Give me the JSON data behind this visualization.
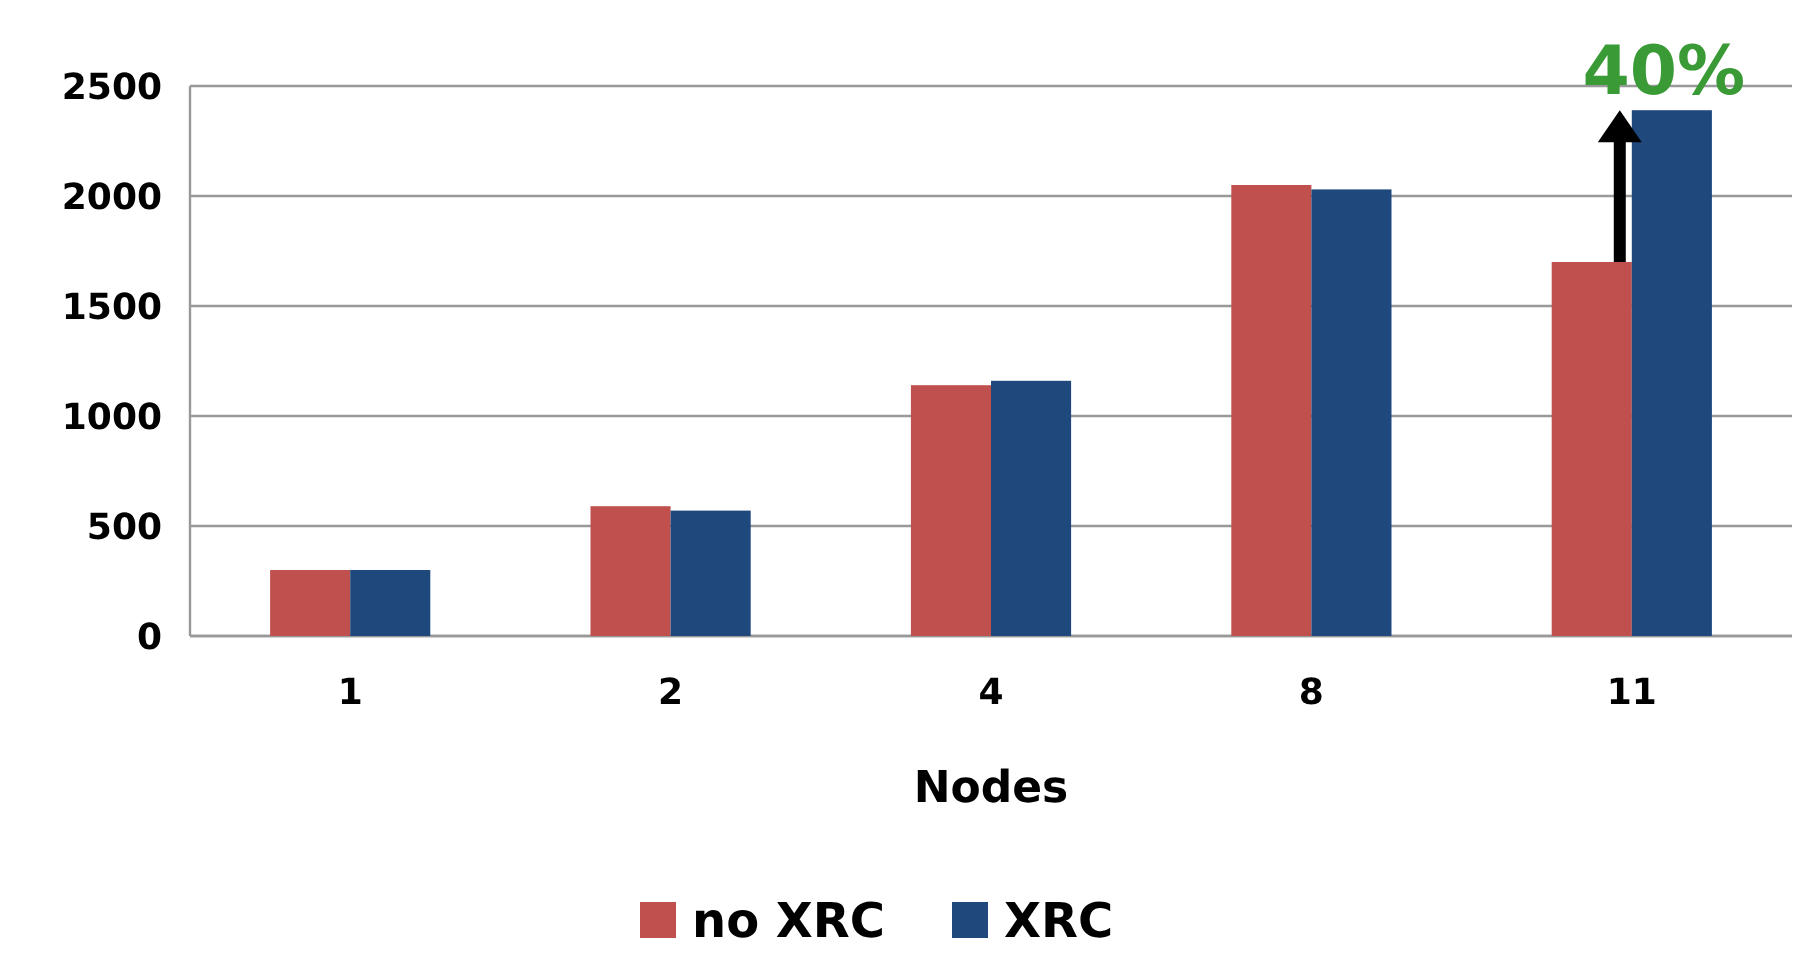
{
  "chart_data": {
    "type": "bar",
    "xlabel": "Nodes",
    "categories": [
      "1",
      "2",
      "4",
      "8",
      "11"
    ],
    "series": [
      {
        "name": "no XRC",
        "color": "#c0504d",
        "values": [
          300,
          590,
          1140,
          2050,
          1700
        ]
      },
      {
        "name": "XRC",
        "color": "#1f497d",
        "values": [
          300,
          570,
          1160,
          2030,
          2390
        ]
      }
    ],
    "ylim": [
      0,
      2500
    ],
    "yticks": [
      0,
      500,
      1000,
      1500,
      2000,
      2500
    ],
    "grid": "y",
    "legend": "bottom",
    "annotations": [
      {
        "text": "40%",
        "x": "11",
        "y": 2390
      }
    ]
  }
}
